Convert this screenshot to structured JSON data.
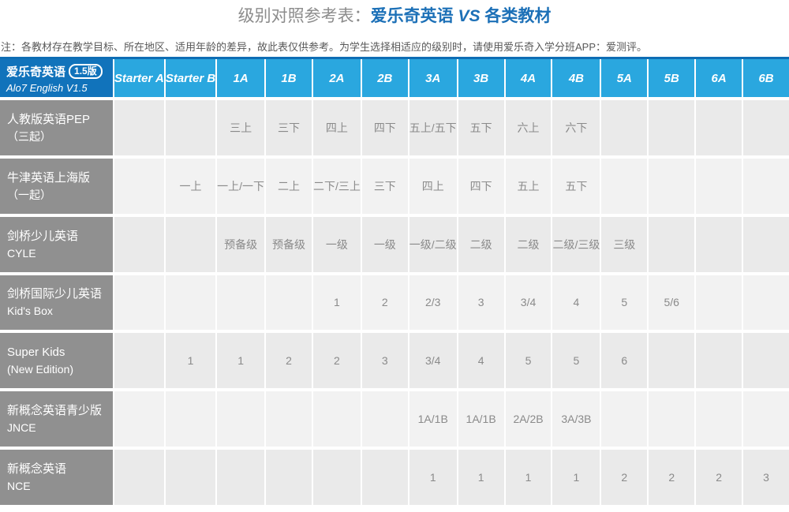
{
  "title": {
    "prefix": "级别对照参考表：",
    "blue1": "爱乐奇英语 ",
    "vs": "VS",
    "blue2": " 各类教材"
  },
  "note": "注：各教材存在教学目标、所在地区、适用年龄的差异，故此表仅供参考。为学生选择相适应的级别时，请使用爱乐奇入学分班APP：爱测评。",
  "colors": {
    "title_blue": "#1c70b7",
    "title_gray": "#8c8c8c",
    "header_dark_blue": "#1173bb",
    "header_blue": "#2aa7df",
    "table_top_border": "#0e6db4",
    "label_gray": "#909090",
    "row_odd_bg": "#eaeaea",
    "row_even_bg": "#f2f2f2",
    "cell_text": "#8a8a8a"
  },
  "table": {
    "brand": {
      "cn": "爱乐奇英语",
      "badge": "1.5版",
      "en": "Alo7 English V1.5"
    },
    "levels": [
      "Starter A",
      "Starter B",
      "1A",
      "1B",
      "2A",
      "2B",
      "3A",
      "3B",
      "4A",
      "4B",
      "5A",
      "5B",
      "6A",
      "6B"
    ],
    "rows": [
      {
        "label": [
          "人教版英语PEP",
          "（三起）"
        ],
        "cells": [
          "",
          "",
          "三上",
          "三下",
          "四上",
          "四下",
          "五上/五下",
          "五下",
          "六上",
          "六下",
          "",
          "",
          "",
          ""
        ]
      },
      {
        "label": [
          "牛津英语上海版",
          "（一起）"
        ],
        "cells": [
          "",
          "一上",
          "一上/一下",
          "二上",
          "二下/三上",
          "三下",
          "四上",
          "四下",
          "五上",
          "五下",
          "",
          "",
          "",
          ""
        ]
      },
      {
        "label": [
          "剑桥少儿英语",
          "CYLE"
        ],
        "cells": [
          "",
          "",
          "预备级",
          "预备级",
          "一级",
          "一级",
          "一级/二级",
          "二级",
          "二级",
          "二级/三级",
          "三级",
          "",
          "",
          ""
        ]
      },
      {
        "label": [
          "剑桥国际少儿英语",
          "Kid's Box"
        ],
        "cells": [
          "",
          "",
          "",
          "",
          "1",
          "2",
          "2/3",
          "3",
          "3/4",
          "4",
          "5",
          "5/6",
          "",
          ""
        ]
      },
      {
        "label": [
          "Super Kids",
          "(New Edition)"
        ],
        "cells": [
          "",
          "1",
          "1",
          "2",
          "2",
          "3",
          "3/4",
          "4",
          "5",
          "5",
          "6",
          "",
          "",
          ""
        ]
      },
      {
        "label": [
          "新概念英语青少版",
          "JNCE"
        ],
        "cells": [
          "",
          "",
          "",
          "",
          "",
          "",
          "1A/1B",
          "1A/1B",
          "2A/2B",
          "3A/3B",
          "",
          "",
          "",
          ""
        ]
      },
      {
        "label": [
          "新概念英语",
          "NCE"
        ],
        "cells": [
          "",
          "",
          "",
          "",
          "",
          "",
          "1",
          "1",
          "1",
          "1",
          "2",
          "2",
          "2",
          "3"
        ]
      }
    ]
  }
}
